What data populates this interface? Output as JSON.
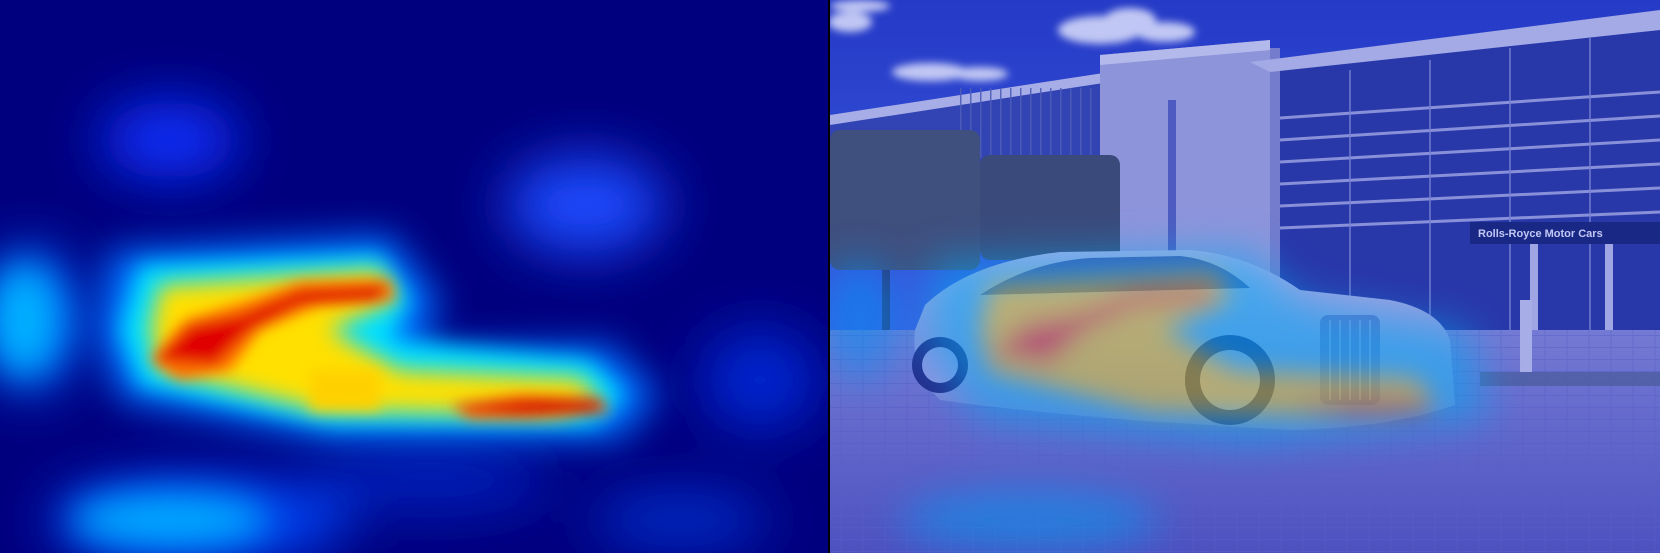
{
  "panels": {
    "left": {
      "kind": "attention-heatmap"
    },
    "right": {
      "kind": "heatmap-overlay-photo"
    }
  },
  "photo": {
    "building_sign": "Rolls-Royce Motor Cars"
  },
  "colors": {
    "heat_low": "#00007e",
    "heat_mid_low": "#0050ff",
    "heat_mid": "#00e0ff",
    "heat_mid_high": "#ffe000",
    "heat_high": "#e00000",
    "sky": "#3a58d8"
  }
}
